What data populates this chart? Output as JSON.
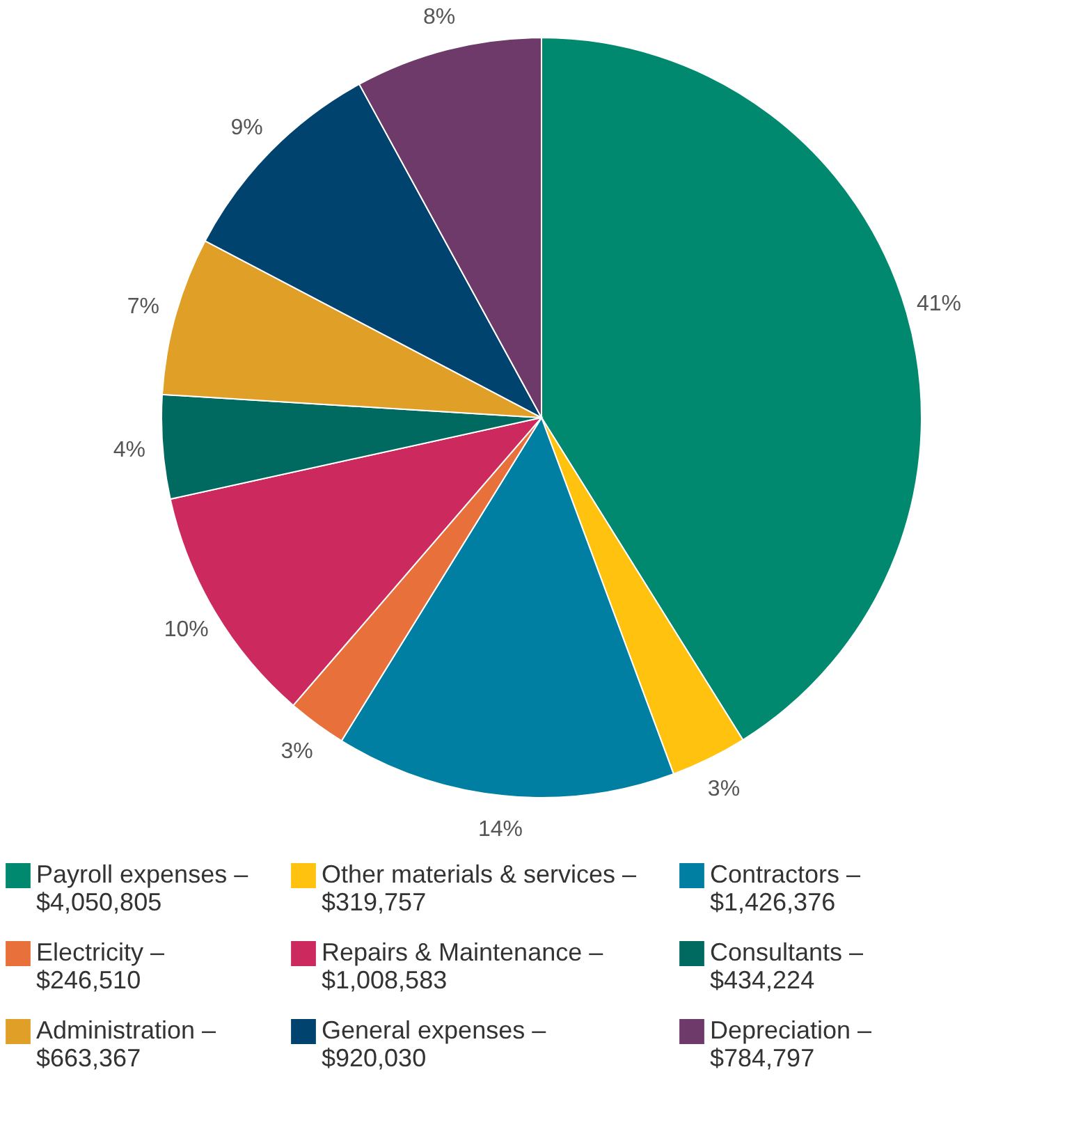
{
  "chart_data": {
    "type": "pie",
    "categories": [
      "Payroll expenses – $4,050,805",
      "Other materials & services – $319,757",
      "Contractors – $1,426,376",
      "Electricity – $246,510",
      "Repairs & Maintenance – $1,008,583",
      "Consultants – $434,224",
      "Administration – $663,367",
      "General expenses – $920,030",
      "Depreciation – $784,797"
    ],
    "values": [
      41.11,
      3.24,
      14.47,
      2.51,
      10.23,
      4.41,
      6.73,
      9.34,
      7.96
    ],
    "value_labels": [
      "41%",
      "3%",
      "14%",
      "3%",
      "10%",
      "4%",
      "7%",
      "9%",
      "8%"
    ],
    "colors": [
      "#00896e",
      "#ffc20e",
      "#007fa3",
      "#e8703a",
      "#cc2a5e",
      "#006a60",
      "#e0a027",
      "#00436e",
      "#6e3a6a"
    ],
    "legend": "bottom"
  }
}
